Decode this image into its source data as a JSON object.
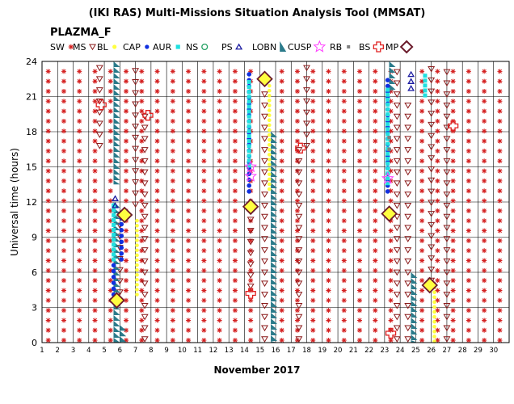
{
  "chart_data": {
    "type": "scatter",
    "title": "(IKI RAS) Multi-Missions Situation Analysis Tool (MMSAT)",
    "instrument": "PLAZMA_F",
    "xlabel": "November 2017",
    "ylabel": "Universal time (hours)",
    "xlim": [
      1,
      31
    ],
    "ylim": [
      0,
      24
    ],
    "x_ticks": [
      1,
      2,
      3,
      4,
      5,
      6,
      7,
      8,
      9,
      10,
      11,
      12,
      13,
      14,
      15,
      16,
      17,
      18,
      19,
      20,
      21,
      22,
      23,
      24,
      25,
      26,
      27,
      28,
      29,
      30
    ],
    "y_ticks": [
      0,
      3,
      6,
      9,
      12,
      15,
      18,
      21,
      24
    ],
    "grid": true,
    "legend_position": "top",
    "colors": {
      "SW": "#d42020",
      "MS": "#8a1a1a",
      "BL": "#ffff40",
      "CAP": "#1030e0",
      "AUR": "#20e0e0",
      "NS": "#20a060",
      "PS": "#1a1aa0",
      "LOBN": "#2a7a8a",
      "CUSP": "#ff40ff",
      "RB": "#808080",
      "BS": "#e02020",
      "MP": "#6a1a2a"
    },
    "legend": [
      {
        "key": "SW",
        "label": "SW",
        "symbol": "star"
      },
      {
        "key": "MS",
        "label": "MS",
        "symbol": "triangle-down"
      },
      {
        "key": "BL",
        "label": "BL",
        "symbol": "dot"
      },
      {
        "key": "CAP",
        "label": "CAP",
        "symbol": "dot"
      },
      {
        "key": "AUR",
        "label": "AUR",
        "symbol": "square"
      },
      {
        "key": "NS",
        "label": "NS",
        "symbol": "circle-open"
      },
      {
        "key": "PS",
        "label": "PS",
        "symbol": "triangle-up"
      },
      {
        "key": "LOBN",
        "label": "LOBN",
        "symbol": "sawtooth"
      },
      {
        "key": "CUSP",
        "label": "CUSP",
        "symbol": "star-open"
      },
      {
        "key": "RB",
        "label": "RB",
        "symbol": "square-small"
      },
      {
        "key": "BS",
        "label": "BS",
        "symbol": "cross-open"
      },
      {
        "key": "MP",
        "label": "MP",
        "symbol": "diamond"
      }
    ],
    "series": [
      {
        "name": "SW",
        "comment_free": true,
        "days": [
          1.4,
          2.4,
          3.4,
          4.4,
          5.4,
          6.4,
          7.4,
          8.4,
          9.4,
          10.4,
          11.4,
          12.4,
          13.4,
          14.4,
          16.4,
          17.4,
          18.4,
          19.4,
          20.4,
          21.4,
          22.4,
          23.4,
          25.4,
          26.4,
          27.4,
          28.4,
          29.4,
          30.4
        ]
      },
      {
        "name": "MS",
        "segments": [
          [
            4.7,
            16.5,
            24
          ],
          [
            6.0,
            4.0,
            11.0
          ],
          [
            7.0,
            11.5,
            24
          ],
          [
            7.6,
            0,
            19.5
          ],
          [
            14.4,
            4.5,
            11.5
          ],
          [
            15.3,
            0,
            22.5
          ],
          [
            17.5,
            0,
            16.5
          ],
          [
            18.0,
            16.5,
            24
          ],
          [
            23.8,
            0,
            24
          ],
          [
            24.5,
            0,
            20.5
          ],
          [
            26.0,
            5.0,
            24
          ],
          [
            27.0,
            0,
            24
          ]
        ]
      },
      {
        "name": "BL",
        "segments": [
          [
            7.1,
            4.0,
            10.8
          ],
          [
            15.6,
            13.0,
            22.0
          ],
          [
            26.2,
            0,
            5.0
          ]
        ]
      },
      {
        "name": "CAP",
        "segments": [
          [
            5.6,
            4.0,
            6.8
          ],
          [
            6.1,
            7.0,
            10.8
          ],
          [
            14.3,
            12.8,
            23.0
          ],
          [
            23.2,
            12.8,
            22.5
          ]
        ]
      },
      {
        "name": "AUR",
        "segments": [
          [
            5.6,
            7.0,
            12.0
          ],
          [
            14.3,
            15.0,
            22.5
          ],
          [
            23.2,
            13.5,
            22.0
          ],
          [
            25.6,
            21.0,
            23.0
          ]
        ]
      },
      {
        "name": "PS",
        "segments": [
          [
            5.7,
            11.5,
            12.8
          ],
          [
            24.7,
            21.5,
            23.0
          ]
        ]
      },
      {
        "name": "LOBN",
        "segments": [
          [
            5.8,
            0,
            12.0
          ],
          [
            5.8,
            13.5,
            24
          ],
          [
            6.2,
            0,
            1.5
          ],
          [
            15.9,
            0,
            18.0
          ],
          [
            23.5,
            21.5,
            24
          ],
          [
            24.9,
            0,
            6.0
          ]
        ]
      },
      {
        "name": "CUSP",
        "points": [
          [
            14.4,
            14.2
          ],
          [
            14.4,
            15.0
          ],
          [
            23.2,
            14.0
          ]
        ]
      },
      {
        "name": "RB",
        "points": [
          [
            23.3,
            16.5
          ],
          [
            23.3,
            17.5
          ]
        ]
      },
      {
        "name": "BS",
        "points": [
          [
            4.8,
            20.3
          ],
          [
            7.8,
            19.4
          ],
          [
            14.4,
            4.2
          ],
          [
            17.6,
            16.6
          ],
          [
            23.4,
            0.8
          ],
          [
            27.4,
            18.5
          ]
        ]
      },
      {
        "name": "MP",
        "points": [
          [
            5.8,
            3.6
          ],
          [
            6.3,
            10.9
          ],
          [
            14.4,
            11.6
          ],
          [
            15.3,
            22.5
          ],
          [
            23.3,
            11.0
          ],
          [
            25.9,
            4.9
          ]
        ]
      }
    ]
  }
}
